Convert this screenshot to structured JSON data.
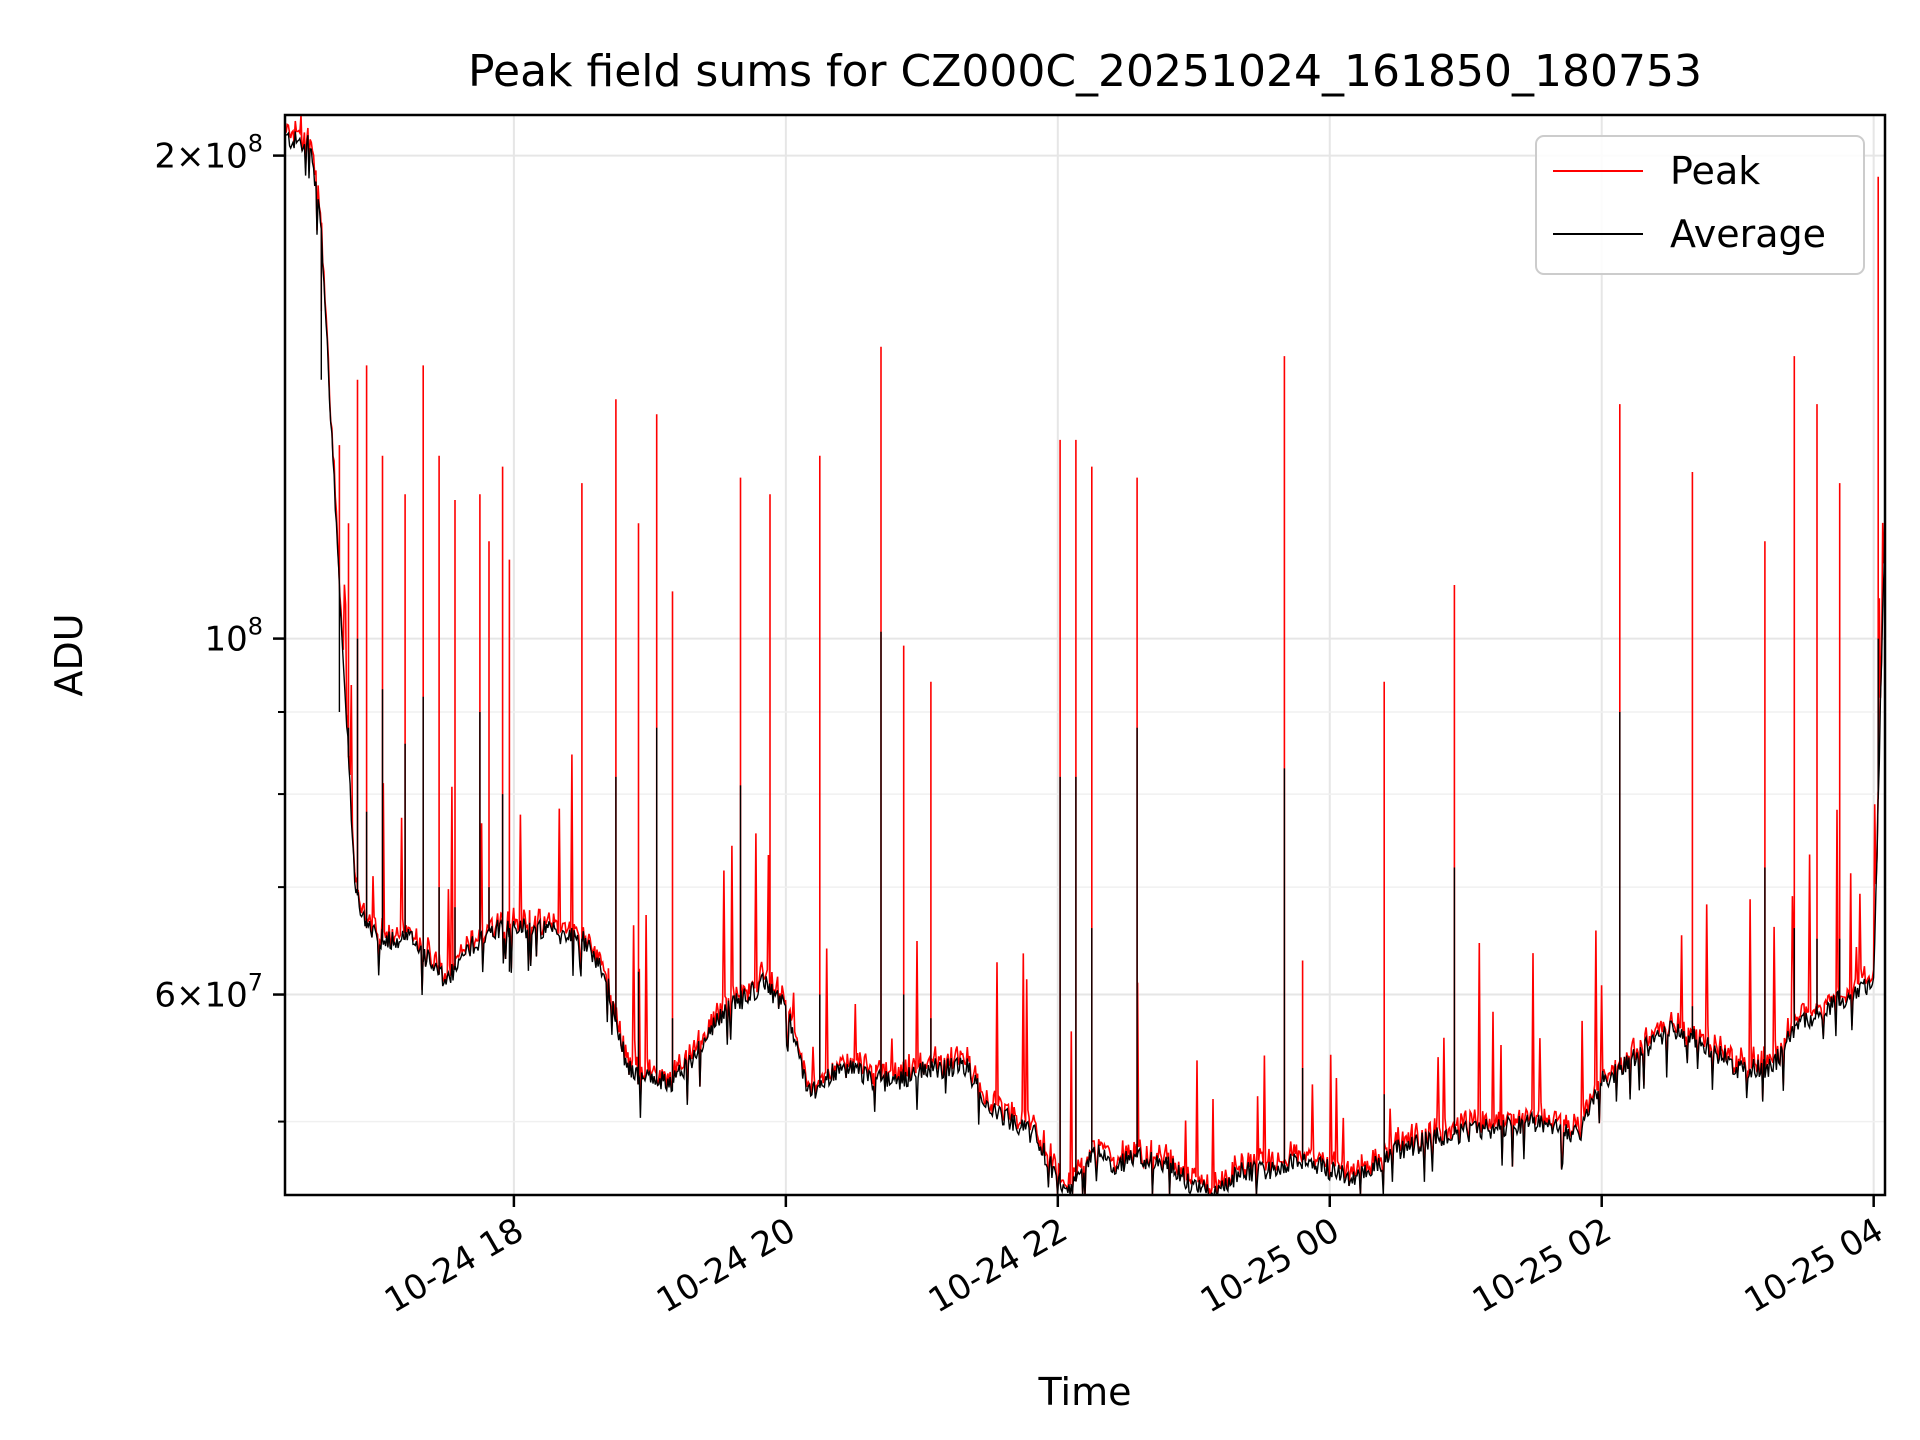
{
  "chart_data": {
    "type": "line",
    "title": "Peak field sums for CZ000C_20251024_161850_180753",
    "xlabel": "Time",
    "ylabel": "ADU",
    "yscale": "log",
    "ylim": [
      45000000,
      212000000
    ],
    "xlim": [
      "2025-10-24 16:19",
      "2025-10-25 04:05"
    ],
    "grid": true,
    "legend_position": "top-right",
    "x_ticks": [
      {
        "label": "10-24 18",
        "t": "2025-10-24 18:00"
      },
      {
        "label": "10-24 20",
        "t": "2025-10-24 20:00"
      },
      {
        "label": "10-24 22",
        "t": "2025-10-24 22:00"
      },
      {
        "label": "10-25 00",
        "t": "2025-10-25 00:00"
      },
      {
        "label": "10-25 02",
        "t": "2025-10-25 02:00"
      },
      {
        "label": "10-25 04",
        "t": "2025-10-25 04:00"
      }
    ],
    "y_ticks": [
      {
        "value": 200000000,
        "mantissa": "2",
        "exponent": "8"
      },
      {
        "value": 100000000,
        "mantissa": "",
        "exponent": "8"
      },
      {
        "value": 60000000,
        "mantissa": "6",
        "exponent": "7"
      }
    ],
    "y_minor_ticks": [
      50000000,
      70000000,
      80000000,
      90000000
    ],
    "baseline": {
      "t": [
        "2025-10-24 16:19",
        "2025-10-24 16:30",
        "2025-10-24 16:35",
        "2025-10-24 16:42",
        "2025-10-24 16:50",
        "2025-10-24 16:55",
        "2025-10-24 17:00",
        "2025-10-24 17:15",
        "2025-10-24 17:30",
        "2025-10-24 17:40",
        "2025-10-24 17:50",
        "2025-10-24 18:00",
        "2025-10-24 18:10",
        "2025-10-24 18:30",
        "2025-10-24 18:40",
        "2025-10-24 18:50",
        "2025-10-24 19:00",
        "2025-10-24 19:10",
        "2025-10-24 19:20",
        "2025-10-24 19:30",
        "2025-10-24 19:40",
        "2025-10-24 19:50",
        "2025-10-24 20:00",
        "2025-10-24 20:10",
        "2025-10-24 20:20",
        "2025-10-24 20:30",
        "2025-10-24 20:40",
        "2025-10-24 20:50",
        "2025-10-24 21:00",
        "2025-10-24 21:20",
        "2025-10-24 21:30",
        "2025-10-24 21:40",
        "2025-10-24 21:50",
        "2025-10-24 22:00",
        "2025-10-24 22:05",
        "2025-10-24 22:15",
        "2025-10-24 22:25",
        "2025-10-24 22:35",
        "2025-10-24 22:50",
        "2025-10-24 23:00",
        "2025-10-24 23:10",
        "2025-10-24 23:20",
        "2025-10-24 23:35",
        "2025-10-24 23:45",
        "2025-10-24 23:55",
        "2025-10-25 00:10",
        "2025-10-25 00:20",
        "2025-10-25 00:30",
        "2025-10-25 00:50",
        "2025-10-25 01:10",
        "2025-10-25 01:30",
        "2025-10-25 01:50",
        "2025-10-25 02:00",
        "2025-10-25 02:05",
        "2025-10-25 02:15",
        "2025-10-25 02:30",
        "2025-10-25 02:45",
        "2025-10-25 03:00",
        "2025-10-25 03:15",
        "2025-10-25 03:25",
        "2025-10-25 03:40",
        "2025-10-25 04:00",
        "2025-10-25 04:05"
      ],
      "y": [
        205000000,
        203000000,
        180000000,
        115000000,
        70000000,
        66000000,
        65000000,
        65000000,
        61000000,
        64000000,
        66000000,
        66000000,
        66000000,
        65000000,
        62000000,
        54000000,
        53000000,
        53000000,
        55000000,
        58000000,
        59500000,
        61000000,
        59000000,
        52000000,
        53500000,
        54000000,
        53000000,
        53000000,
        54000000,
        54000000,
        51000000,
        50000000,
        49000000,
        46000000,
        45000000,
        48000000,
        47000000,
        47500000,
        47000000,
        45500000,
        45000000,
        46500000,
        46500000,
        47500000,
        47000000,
        46000000,
        47000000,
        48000000,
        49000000,
        49500000,
        50000000,
        49000000,
        53000000,
        53500000,
        55000000,
        57000000,
        56000000,
        54000000,
        54000000,
        57000000,
        59000000,
        61000000,
        118000000
      ]
    },
    "spikes": {
      "t": [
        "2025-10-24 16:35",
        "2025-10-24 16:43",
        "2025-10-24 16:47",
        "2025-10-24 16:51",
        "2025-10-24 16:55",
        "2025-10-24 17:02",
        "2025-10-24 17:12",
        "2025-10-24 17:20",
        "2025-10-24 17:27",
        "2025-10-24 17:34",
        "2025-10-24 17:45",
        "2025-10-24 17:49",
        "2025-10-24 17:55",
        "2025-10-24 17:58",
        "2025-10-24 18:30",
        "2025-10-24 18:45",
        "2025-10-24 18:55",
        "2025-10-24 19:03",
        "2025-10-24 19:10",
        "2025-10-24 19:40",
        "2025-10-24 19:53",
        "2025-10-24 20:15",
        "2025-10-24 20:42",
        "2025-10-24 20:52",
        "2025-10-24 21:04",
        "2025-10-24 22:01",
        "2025-10-24 22:08",
        "2025-10-24 22:15",
        "2025-10-24 22:35",
        "2025-10-24 23:40",
        "2025-10-24 23:48",
        "2025-10-25 00:24",
        "2025-10-25 00:55",
        "2025-10-25 02:08",
        "2025-10-25 02:40",
        "2025-10-25 03:12",
        "2025-10-25 03:25",
        "2025-10-25 03:35",
        "2025-10-25 03:45",
        "2025-10-25 04:02"
      ],
      "peak": [
        160000000,
        132000000,
        118000000,
        145000000,
        148000000,
        130000000,
        123000000,
        148000000,
        130000000,
        122000000,
        123000000,
        115000000,
        128000000,
        112000000,
        125000000,
        141000000,
        118000000,
        138000000,
        107000000,
        126000000,
        123000000,
        130000000,
        152000000,
        99000000,
        94000000,
        133000000,
        133000000,
        128000000,
        126000000,
        150000000,
        63000000,
        94000000,
        108000000,
        140000000,
        127000000,
        115000000,
        150000000,
        140000000,
        125000000,
        194000000
      ],
      "average": [
        145000000,
        90000000,
        88000000,
        100000000,
        78000000,
        93000000,
        86000000,
        92000000,
        70000000,
        68000000,
        90000000,
        70000000,
        80000000,
        62000000,
        64000000,
        82000000,
        62000000,
        88000000,
        58000000,
        81000000,
        60000000,
        60000000,
        101000000,
        60000000,
        58000000,
        82000000,
        82000000,
        66000000,
        88000000,
        83000000,
        54000000,
        52000000,
        72000000,
        90000000,
        59000000,
        72000000,
        66000000,
        65000000,
        65000000,
        100000000
      ]
    },
    "series": [
      {
        "name": "Peak",
        "color": "#ff0000"
      },
      {
        "name": "Average",
        "color": "#000000"
      }
    ]
  }
}
